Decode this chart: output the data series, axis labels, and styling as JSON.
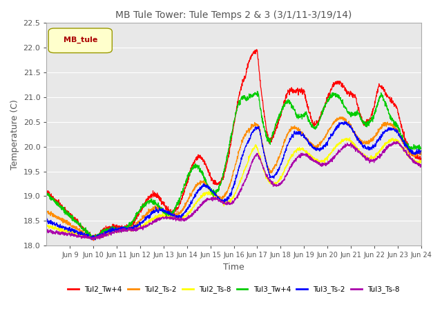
{
  "title": "MB Tule Tower: Tule Temps 2 & 3 (3/1/11-3/19/14)",
  "xlabel": "Time",
  "ylabel": "Temperature (C)",
  "ylim": [
    18.0,
    22.5
  ],
  "xlim": [
    0,
    16
  ],
  "x_tick_labels": [
    "Jun 9",
    "Jun 10",
    "Jun 11",
    "Jun 12",
    "Jun 13",
    "Jun 14",
    "Jun 15",
    "Jun 16",
    "Jun 17",
    "Jun 18",
    "Jun 19",
    "Jun 20",
    "Jun 21",
    "Jun 22",
    "Jun 23",
    "Jun 24"
  ],
  "legend_label": "MB_tule",
  "series_names": [
    "Tul2_Tw+4",
    "Tul2_Ts-2",
    "Tul2_Ts-8",
    "Tul3_Tw+4",
    "Tul3_Ts-2",
    "Tul3_Ts-8"
  ],
  "series_colors": [
    "#ff0000",
    "#ff8c00",
    "#ffff00",
    "#00cc00",
    "#0000ff",
    "#aa00aa"
  ],
  "background_color": "#ffffff",
  "plot_bg_color": "#e8e8e8",
  "title_color": "#555555",
  "grid_color": "#ffffff"
}
